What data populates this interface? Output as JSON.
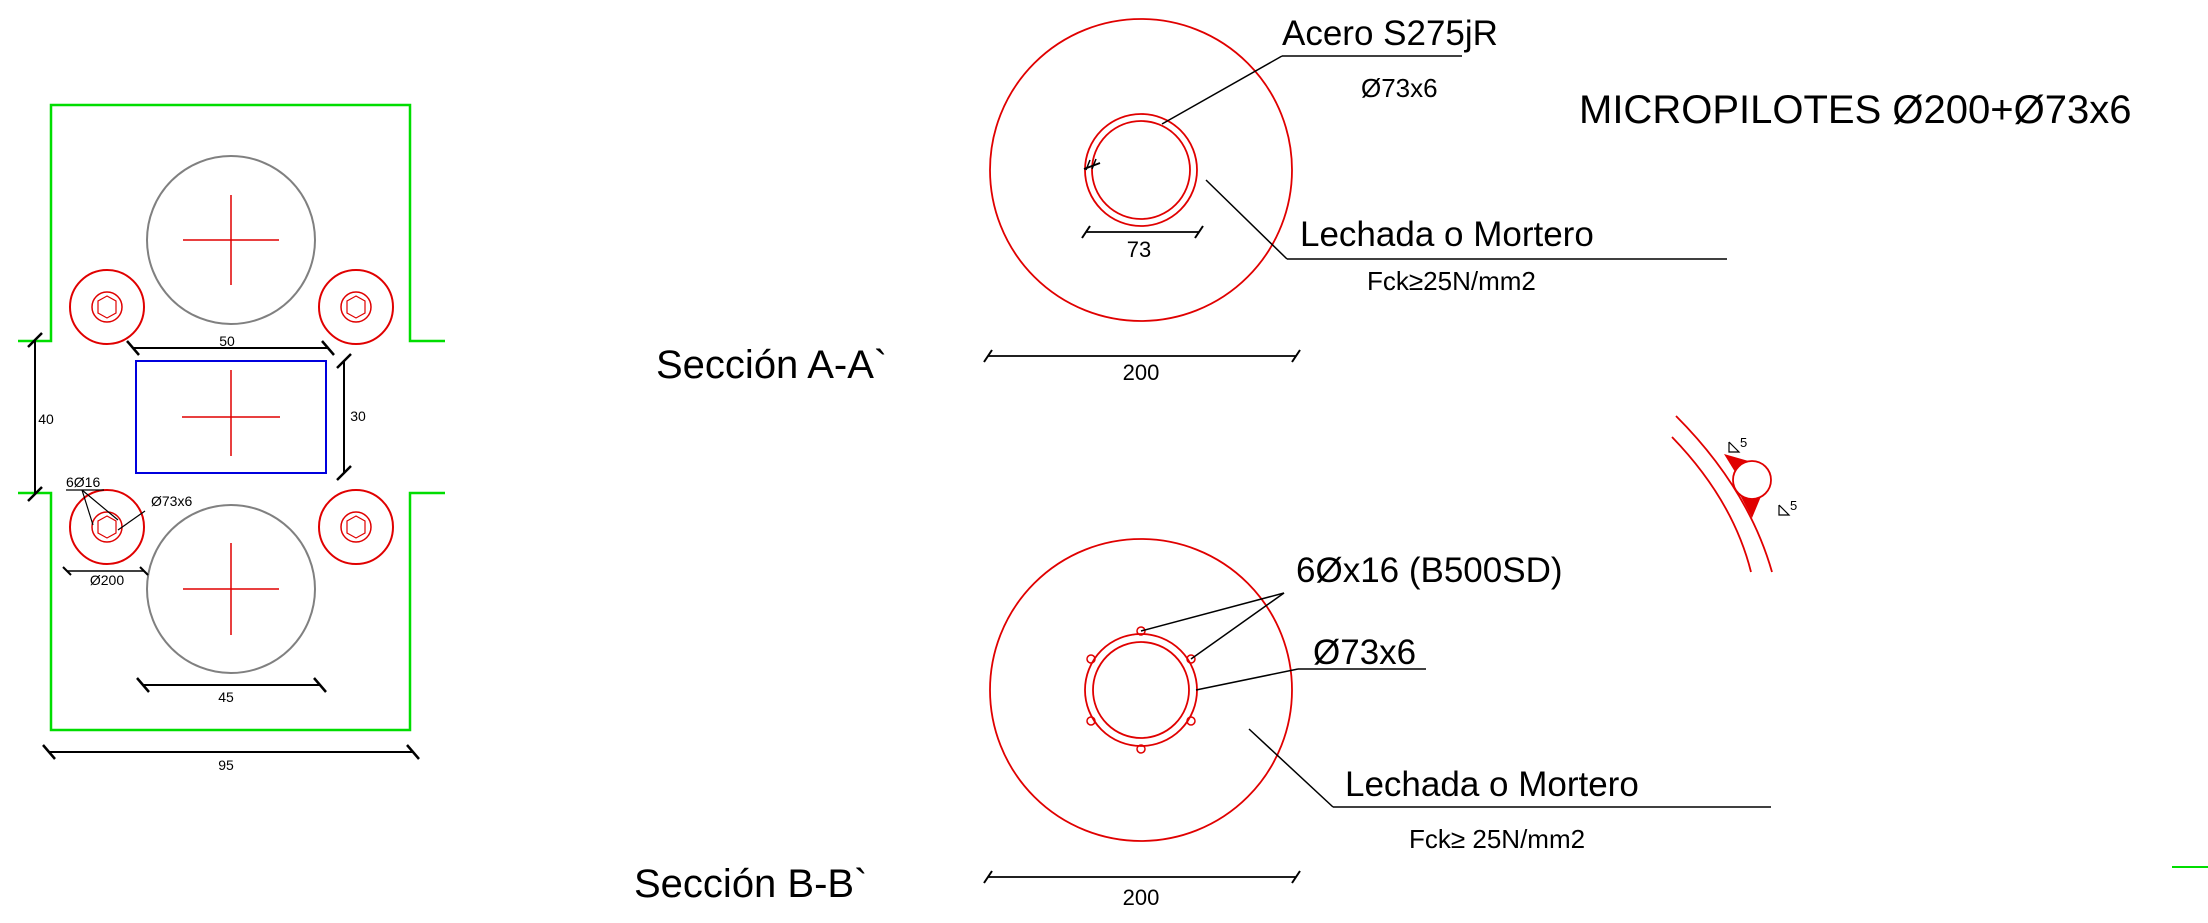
{
  "plan": {
    "dim_top": "50",
    "dim_left": "40",
    "dim_right": "30",
    "dim_bottom_inner": "45",
    "dim_bottom_total": "95",
    "label_bars": "6Ø16",
    "label_pipe": "Ø73x6",
    "label_dia": "Ø200"
  },
  "section_a": {
    "title": "Sección A-A`",
    "steel_label": "Acero S275jR",
    "pipe_label": "Ø73x6",
    "grout_label": "Lechada o Mortero",
    "fck_label": "Fck≥25N/mm2",
    "dim_inner": "73",
    "dim_outer": "200"
  },
  "section_b": {
    "title": "Sección B-B`",
    "bars_label": "6Øx16 (B500SD)",
    "pipe_label": "Ø73x6",
    "grout_label": "Lechada o Mortero",
    "fck_label": "Fck≥ 25N/mm2",
    "dim_outer": "200"
  },
  "main_title": "MICROPILOTES Ø200+Ø73x6",
  "weld_detail": {
    "size_top": "5",
    "size_bottom": "5"
  },
  "colors": {
    "outline": "#00dd00",
    "pile": "#e00000",
    "cap": "#0000dd",
    "column": "#808080",
    "dim": "#000000"
  }
}
